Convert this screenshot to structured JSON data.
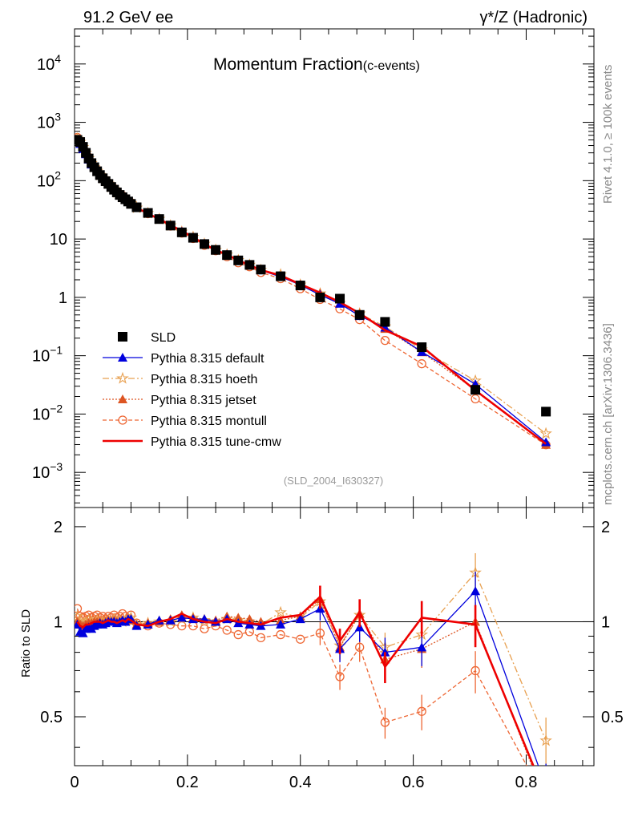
{
  "header": {
    "energy": "91.2 GeV ee",
    "process": "γ*/Z (Hadronic)"
  },
  "side_labels": {
    "rivet": "Rivet 4.1.0, ≥ 100k events",
    "mcplots": "mcplots.cern.ch [arXiv:1306.3436]"
  },
  "chart_data": {
    "type": "line",
    "title": "Momentum Fraction",
    "subtitle": "(c-events)",
    "analysis": "(SLD_2004_I630327)",
    "xlabel": "",
    "ylabel_ratio": "Ratio to SLD",
    "xlim": [
      0,
      0.92
    ],
    "ylim_log": [
      0.00025,
      40000
    ],
    "ylim_ratio": [
      0.35,
      2.3
    ],
    "x_ticks": [
      "0",
      "0.2",
      "0.4",
      "0.6",
      "0.8"
    ],
    "y_ticks_main": [
      "10^4",
      "10^3",
      "10^2",
      "10",
      "1",
      "10^-1",
      "10^-2",
      "10^-3"
    ],
    "y_ticks_ratio": [
      "2",
      "1",
      "0.5"
    ],
    "legend": [
      {
        "name": "SLD",
        "color": "#000000",
        "marker": "square",
        "dash": ""
      },
      {
        "name": "Pythia 8.315 default",
        "color": "#0000dd",
        "marker": "triangle",
        "dash": ""
      },
      {
        "name": "Pythia 8.315 hoeth",
        "color": "#e8a050",
        "marker": "star",
        "dash": "8,3,2,3"
      },
      {
        "name": "Pythia 8.315 jetset",
        "color": "#dd5522",
        "marker": "triangle",
        "dash": "2,2"
      },
      {
        "name": "Pythia 8.315 montull",
        "color": "#ee6633",
        "marker": "circle",
        "dash": "5,3"
      },
      {
        "name": "Pythia 8.315 tune-cmw",
        "color": "#ee0000",
        "marker": "none",
        "dash": ""
      }
    ],
    "data": {
      "x": [
        0.005,
        0.01,
        0.015,
        0.02,
        0.025,
        0.03,
        0.035,
        0.04,
        0.045,
        0.05,
        0.055,
        0.06,
        0.065,
        0.07,
        0.075,
        0.08,
        0.085,
        0.09,
        0.095,
        0.1,
        0.11,
        0.13,
        0.15,
        0.17,
        0.19,
        0.21,
        0.23,
        0.25,
        0.27,
        0.29,
        0.31,
        0.33,
        0.365,
        0.4,
        0.435,
        0.47,
        0.505,
        0.55,
        0.615,
        0.71,
        0.835
      ],
      "sld": [
        500,
        460,
        380,
        300,
        240,
        200,
        170,
        145,
        125,
        110,
        98,
        88,
        78,
        70,
        63,
        57,
        52,
        48,
        44,
        40,
        35,
        28,
        22,
        17,
        13,
        10.5,
        8.2,
        6.5,
        5.3,
        4.3,
        3.6,
        3.0,
        2.3,
        1.6,
        1.0,
        0.95,
        0.5,
        0.38,
        0.14,
        0.026,
        0.011
      ]
    },
    "ratios": {
      "default": [
        0.98,
        0.93,
        0.92,
        0.95,
        0.96,
        0.95,
        0.97,
        0.98,
        0.99,
        0.98,
        0.99,
        1.0,
        1.0,
        1.0,
        0.99,
        1.0,
        1.01,
        1.0,
        1.02,
        1.02,
        0.97,
        0.98,
        1.01,
        1.01,
        1.03,
        1.02,
        1.02,
        1.0,
        1.02,
        0.99,
        0.98,
        0.97,
        0.98,
        1.02,
        1.1,
        0.82,
        0.96,
        0.8,
        0.83,
        1.25,
        0.3
      ],
      "hoeth": [
        1.04,
        1.0,
        0.99,
        1.0,
        1.01,
        1.0,
        1.0,
        1.01,
        1.0,
        1.0,
        1.0,
        1.01,
        1.0,
        1.02,
        1.0,
        1.01,
        1.0,
        1.01,
        1.02,
        1.03,
        0.98,
        0.99,
        1.0,
        1.0,
        1.02,
        1.03,
        1.01,
        1.0,
        1.02,
        1.01,
        1.0,
        0.98,
        1.07,
        1.03,
        1.16,
        0.84,
        1.05,
        0.83,
        0.91,
        1.43,
        0.42
      ],
      "jetset": [
        1.0,
        0.98,
        0.97,
        0.98,
        0.99,
        0.99,
        1.0,
        1.0,
        1.0,
        0.99,
        1.0,
        1.01,
        1.0,
        1.01,
        1.0,
        1.0,
        1.01,
        1.0,
        1.02,
        1.01,
        0.98,
        0.99,
        1.0,
        1.02,
        1.05,
        1.03,
        1.02,
        1.01,
        1.04,
        1.03,
        1.02,
        1.0,
        1.01,
        1.04,
        1.18,
        0.83,
        1.06,
        0.76,
        0.82,
        1.0,
        0.27
      ],
      "montull": [
        1.1,
        1.04,
        1.03,
        1.04,
        1.05,
        1.03,
        1.04,
        1.05,
        1.03,
        1.04,
        1.02,
        1.04,
        1.03,
        1.05,
        1.03,
        1.04,
        1.06,
        1.04,
        1.02,
        1.05,
        0.99,
        0.97,
        0.99,
        0.98,
        0.97,
        0.97,
        0.95,
        0.97,
        0.94,
        0.91,
        0.93,
        0.89,
        0.91,
        0.88,
        0.92,
        0.67,
        0.83,
        0.48,
        0.52,
        0.7,
        0.27
      ],
      "tune_cmw": [
        1.0,
        0.97,
        0.96,
        0.98,
        0.98,
        0.99,
        1.0,
        1.0,
        1.0,
        0.99,
        1.0,
        1.01,
        1.0,
        1.0,
        0.99,
        1.0,
        1.01,
        1.0,
        1.02,
        1.01,
        0.98,
        0.97,
        1.0,
        1.02,
        1.06,
        1.02,
        1.0,
        0.99,
        1.02,
        1.0,
        0.99,
        0.98,
        1.03,
        1.05,
        1.2,
        0.87,
        1.07,
        0.72,
        1.03,
        0.98,
        0.28
      ]
    }
  }
}
